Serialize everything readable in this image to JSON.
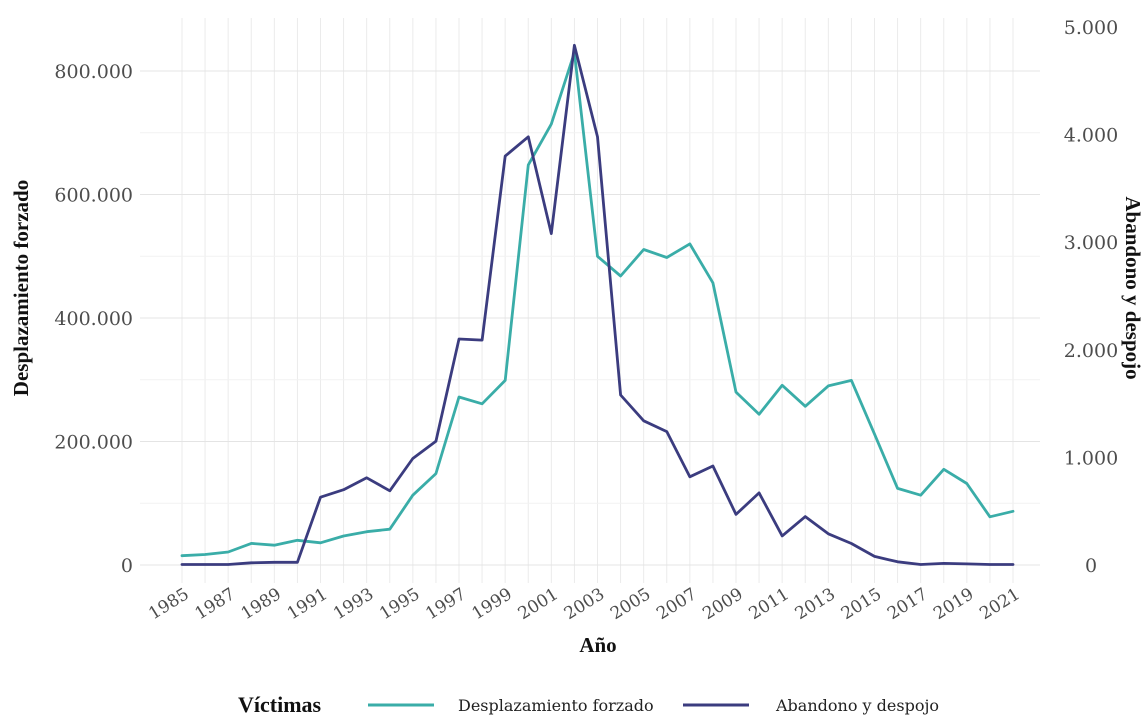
{
  "chart_data": {
    "type": "line",
    "xlabel": "Año",
    "ylabel_left": "Desplazamiento forzado",
    "ylabel_right": "Abandono y despojo",
    "x": [
      1985,
      1986,
      1987,
      1988,
      1989,
      1990,
      1991,
      1992,
      1993,
      1994,
      1995,
      1996,
      1997,
      1998,
      1999,
      2000,
      2001,
      2002,
      2003,
      2004,
      2005,
      2006,
      2007,
      2008,
      2009,
      2010,
      2011,
      2012,
      2013,
      2014,
      2015,
      2016,
      2017,
      2018,
      2019,
      2020,
      2021
    ],
    "x_tick_labels": [
      "1985",
      "1987",
      "1989",
      "1991",
      "1993",
      "1995",
      "1997",
      "1999",
      "2001",
      "2003",
      "2005",
      "2007",
      "2009",
      "2011",
      "2013",
      "2015",
      "2017",
      "2019",
      "2021"
    ],
    "y_left_ticks": [
      0,
      200000,
      400000,
      600000,
      800000
    ],
    "y_left_tick_labels": [
      "0",
      "200.000",
      "400.000",
      "600.000",
      "800.000"
    ],
    "y_left_lim": [
      0,
      870000
    ],
    "y_right_ticks": [
      0,
      1000,
      2000,
      3000,
      4000,
      5000
    ],
    "y_right_tick_labels": [
      "0",
      "1.000",
      "2.000",
      "3.000",
      "4.000",
      "5.000"
    ],
    "y_right_lim": [
      0,
      5000
    ],
    "grid": true,
    "legend_position": "bottom",
    "legend_title": "Víctimas",
    "series": [
      {
        "name": "Desplazamiento forzado",
        "axis": "left",
        "color": "#3aada8",
        "values": [
          15000,
          17000,
          21000,
          35000,
          32000,
          40000,
          36000,
          47000,
          54000,
          58000,
          113000,
          148000,
          272000,
          261000,
          299000,
          648000,
          714000,
          830000,
          500000,
          468000,
          511000,
          498000,
          520000,
          457000,
          280000,
          244000,
          291000,
          257000,
          290000,
          299000,
          212000,
          124000,
          113000,
          155000,
          132000,
          78000,
          87000
        ]
      },
      {
        "name": "Abandono y despojo",
        "axis": "right",
        "color": "#3b3c7f",
        "values": [
          5,
          5,
          5,
          20,
          25,
          25,
          630,
          700,
          810,
          690,
          990,
          1150,
          2100,
          2090,
          3800,
          3980,
          3080,
          4830,
          3980,
          1580,
          1340,
          1240,
          820,
          920,
          470,
          670,
          270,
          450,
          290,
          200,
          80,
          30,
          5,
          15,
          10,
          5,
          5
        ]
      }
    ]
  }
}
